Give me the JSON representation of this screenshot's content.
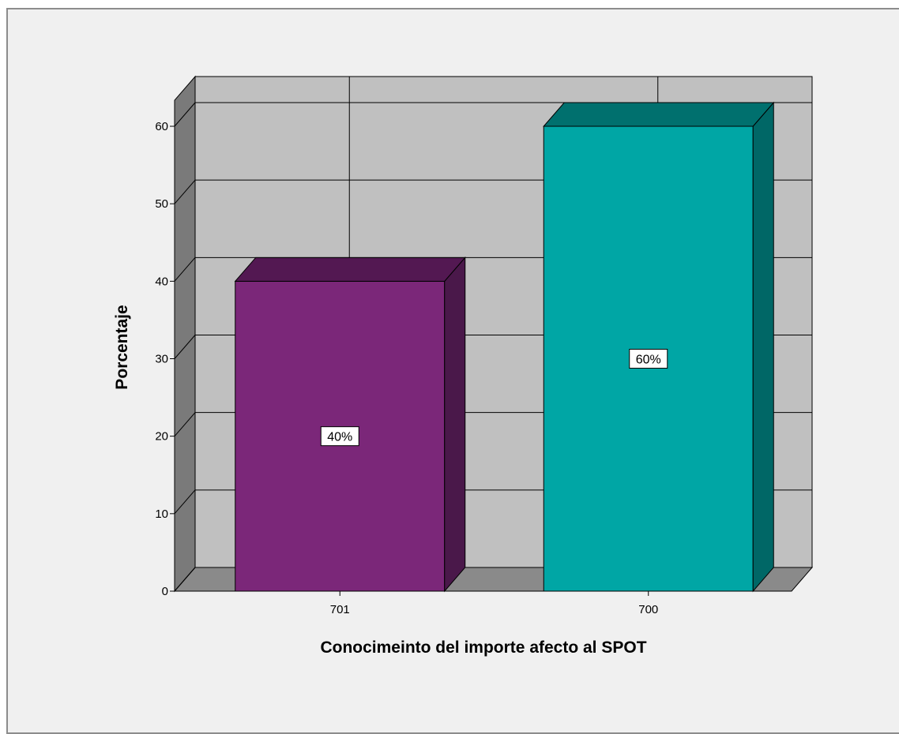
{
  "chart_data": {
    "type": "bar",
    "categories": [
      "701",
      "700"
    ],
    "values": [
      40,
      60
    ],
    "data_labels": [
      "40%",
      "60%"
    ],
    "title": "",
    "xlabel": "Conocimeinto del importe afecto al SPOT",
    "ylabel": "Porcentaje",
    "ylim": [
      0,
      60
    ],
    "y_ticks": [
      "0",
      "10",
      "20",
      "30",
      "40",
      "50",
      "60"
    ],
    "grid": true,
    "style": "3d",
    "colors": {
      "bars": [
        "#7b2779",
        "#00a6a5"
      ],
      "bar_sides": [
        "#4a184a",
        "#006766"
      ],
      "bar_tops": [
        "#531852",
        "#00706e"
      ],
      "wall_back": "#c0c0c0",
      "wall_side": "#7a7a7a",
      "floor": "#8a8a8a",
      "background": "#f0f0f0"
    }
  }
}
